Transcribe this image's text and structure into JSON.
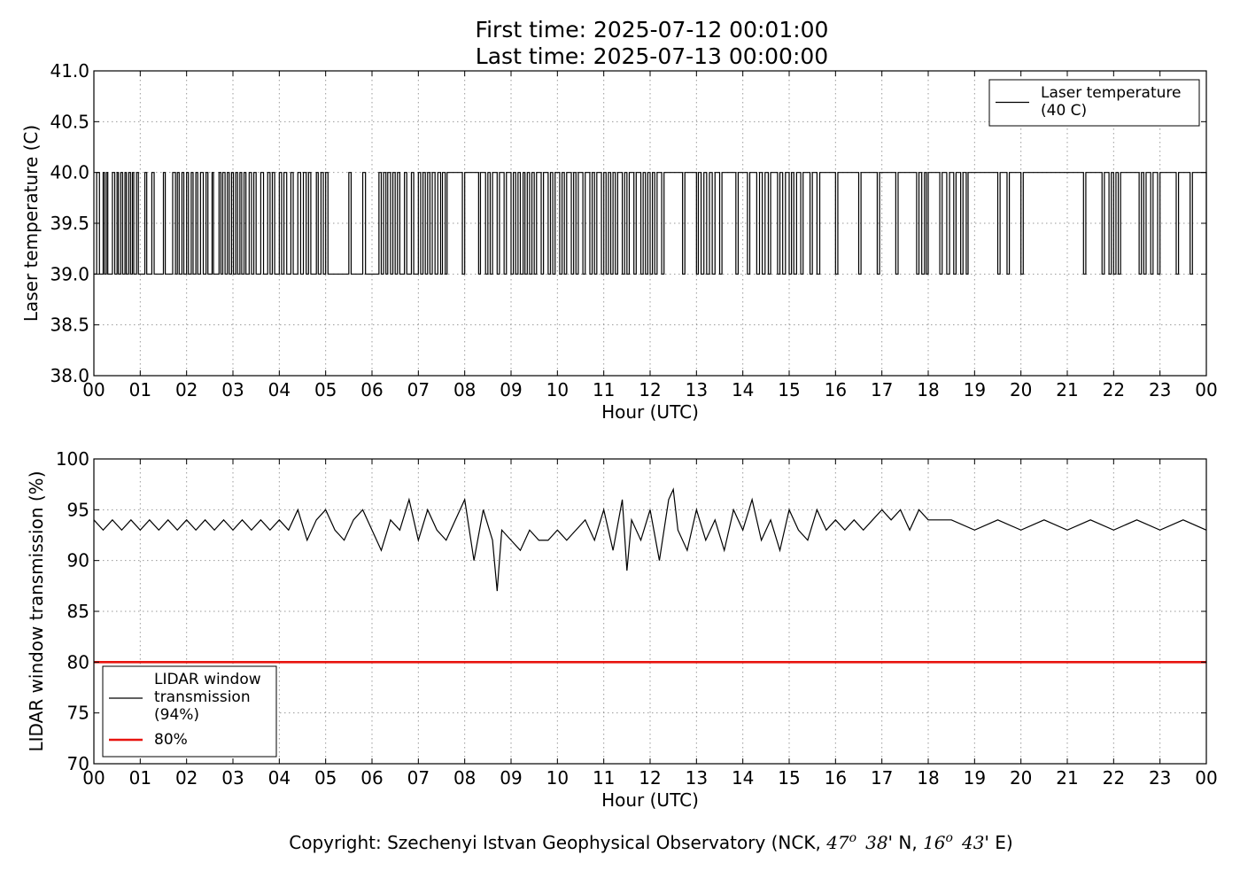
{
  "title": {
    "line1": "First time: 2025-07-12 00:01:00",
    "line2": "Last time: 2025-07-13 00:00:00"
  },
  "copyright": {
    "prefix": "Copyright: Szechenyi Istvan Geophysical Observatory (NCK, ",
    "lat_deg": "47",
    "lat_deg_sup": "o",
    "lat_min": "38",
    "lat_suffix": "' N, ",
    "lon_deg": "16",
    "lon_deg_sup": "o",
    "lon_min": "43",
    "lon_suffix": "' E)"
  },
  "chart_data": [
    {
      "type": "line",
      "xlabel": "Hour (UTC)",
      "ylabel": "Laser temperature (C)",
      "xlim": [
        0,
        24
      ],
      "ylim": [
        38.0,
        41.0
      ],
      "x_tick_labels": [
        "00",
        "01",
        "02",
        "03",
        "04",
        "05",
        "06",
        "07",
        "08",
        "09",
        "10",
        "11",
        "12",
        "13",
        "14",
        "15",
        "16",
        "17",
        "18",
        "19",
        "20",
        "21",
        "22",
        "23",
        "00"
      ],
      "y_ticks": [
        38.0,
        38.5,
        39.0,
        39.5,
        40.0,
        40.5,
        41.0
      ],
      "y_tick_labels": [
        "38.0",
        "38.5",
        "39.0",
        "39.5",
        "40.0",
        "40.5",
        "41.0"
      ],
      "grid": true,
      "legend_position": "top-right",
      "series": [
        {
          "name": "Laser temperature\n(40 C)",
          "color": "#000000",
          "step": true,
          "x": [
            0.0,
            0.06,
            0.12,
            0.2,
            0.23,
            0.27,
            0.3,
            0.4,
            0.45,
            0.5,
            0.53,
            0.58,
            0.62,
            0.67,
            0.7,
            0.75,
            0.79,
            0.83,
            0.86,
            0.92,
            0.96,
            1.1,
            1.14,
            1.25,
            1.3,
            1.5,
            1.54,
            1.7,
            1.76,
            1.8,
            1.84,
            1.9,
            1.94,
            2.0,
            2.04,
            2.1,
            2.14,
            2.2,
            2.24,
            2.3,
            2.36,
            2.42,
            2.46,
            2.55,
            2.58,
            2.7,
            2.74,
            2.78,
            2.83,
            2.88,
            2.92,
            2.97,
            3.01,
            3.06,
            3.1,
            3.15,
            3.19,
            3.24,
            3.28,
            3.35,
            3.4,
            3.45,
            3.5,
            3.6,
            3.66,
            3.75,
            3.8,
            3.85,
            3.9,
            4.0,
            4.05,
            4.1,
            4.16,
            4.25,
            4.3,
            4.4,
            4.46,
            4.52,
            4.58,
            4.63,
            4.68,
            4.8,
            4.84,
            4.9,
            4.95,
            5.0,
            5.05,
            5.5,
            5.55,
            5.8,
            5.86,
            6.15,
            6.2,
            6.25,
            6.3,
            6.34,
            6.4,
            6.45,
            6.5,
            6.55,
            6.6,
            6.7,
            6.75,
            6.85,
            6.9,
            7.0,
            7.05,
            7.1,
            7.15,
            7.2,
            7.25,
            7.3,
            7.36,
            7.42,
            7.48,
            7.52,
            7.58,
            7.62,
            7.95,
            8.0,
            8.3,
            8.34,
            8.45,
            8.5,
            8.55,
            8.6,
            8.7,
            8.75,
            8.85,
            8.9,
            9.0,
            9.05,
            9.1,
            9.15,
            9.2,
            9.26,
            9.3,
            9.35,
            9.4,
            9.45,
            9.5,
            9.55,
            9.65,
            9.7,
            9.8,
            9.85,
            9.9,
            9.95,
            10.05,
            10.1,
            10.15,
            10.2,
            10.3,
            10.35,
            10.4,
            10.45,
            10.55,
            10.6,
            10.7,
            10.75,
            10.8,
            10.85,
            10.95,
            11.0,
            11.05,
            11.1,
            11.15,
            11.2,
            11.25,
            11.3,
            11.4,
            11.45,
            11.5,
            11.55,
            11.65,
            11.7,
            11.8,
            11.85,
            11.9,
            11.95,
            12.0,
            12.05,
            12.1,
            12.15,
            12.25,
            12.3,
            12.7,
            12.75,
            13.0,
            13.04,
            13.1,
            13.16,
            13.22,
            13.28,
            13.34,
            13.4,
            13.5,
            13.55,
            13.85,
            13.9,
            14.1,
            14.15,
            14.3,
            14.36,
            14.42,
            14.48,
            14.55,
            14.6,
            14.75,
            14.8,
            14.86,
            14.92,
            15.0,
            15.05,
            15.1,
            15.16,
            15.25,
            15.3,
            15.45,
            15.5,
            15.6,
            15.66,
            16.0,
            16.05,
            16.5,
            16.55,
            16.9,
            16.95,
            17.3,
            17.35,
            17.75,
            17.8,
            17.86,
            17.92,
            17.96,
            18.0,
            18.25,
            18.3,
            18.4,
            18.46,
            18.55,
            18.6,
            18.7,
            18.75,
            18.82,
            18.86,
            19.5,
            19.55,
            19.7,
            19.75,
            20.0,
            20.05,
            21.35,
            21.4,
            21.75,
            21.8,
            21.9,
            21.95,
            22.0,
            22.05,
            22.1,
            22.15,
            22.55,
            22.6,
            22.65,
            22.7,
            22.8,
            22.85,
            22.95,
            23.0,
            23.35,
            23.4,
            23.65,
            23.7,
            24.0
          ],
          "y": [
            39,
            40,
            39,
            40,
            39,
            40,
            39,
            40,
            39,
            40,
            39,
            40,
            39,
            40,
            39,
            40,
            39,
            40,
            39,
            40,
            39,
            40,
            39,
            40,
            39,
            40,
            39,
            40,
            39,
            40,
            39,
            40,
            39,
            40,
            39,
            40,
            39,
            40,
            39,
            40,
            39,
            40,
            39,
            40,
            39,
            40,
            39,
            40,
            39,
            40,
            39,
            40,
            39,
            40,
            39,
            40,
            39,
            40,
            39,
            40,
            39,
            40,
            39,
            40,
            39,
            40,
            39,
            40,
            39,
            40,
            39,
            40,
            39,
            40,
            39,
            40,
            39,
            40,
            39,
            40,
            39,
            40,
            39,
            40,
            39,
            40,
            39,
            40,
            39,
            40,
            39,
            40,
            39,
            40,
            39,
            40,
            39,
            40,
            39,
            40,
            39,
            40,
            39,
            40,
            39,
            40,
            39,
            40,
            39,
            40,
            39,
            40,
            39,
            40,
            39,
            40,
            39,
            40,
            39,
            40,
            39,
            40,
            39,
            40,
            39,
            40,
            39,
            40,
            39,
            40,
            39,
            40,
            39,
            40,
            39,
            40,
            39,
            40,
            39,
            40,
            39,
            40,
            39,
            40,
            39,
            40,
            39,
            40,
            39,
            40,
            39,
            40,
            39,
            40,
            39,
            40,
            39,
            40,
            39,
            40,
            39,
            40,
            39,
            40,
            39,
            40,
            39,
            40,
            39,
            40,
            39,
            40,
            39,
            40,
            39,
            40,
            39,
            40,
            39,
            40,
            39,
            40,
            39,
            40,
            39,
            40,
            39,
            40,
            39,
            40,
            39,
            40,
            39,
            40,
            39,
            40,
            39,
            40,
            39,
            40,
            39,
            40,
            39,
            40,
            39,
            40,
            39,
            40,
            39,
            40,
            39,
            40,
            39,
            40,
            39,
            40,
            39,
            40,
            39,
            40,
            39,
            40,
            39,
            40,
            39,
            40,
            39,
            40,
            39,
            40,
            39,
            40,
            39,
            40,
            39,
            40,
            39,
            40,
            39,
            40,
            39,
            40,
            39,
            40,
            39,
            40,
            39,
            40,
            39,
            40,
            39,
            40,
            39,
            40,
            39,
            40,
            39,
            40,
            39,
            40,
            39,
            40,
            39,
            40,
            39,
            40,
            39,
            40,
            39,
            40,
            39,
            40,
            39,
            40,
            39
          ]
        }
      ]
    },
    {
      "type": "line",
      "xlabel": "Hour (UTC)",
      "ylabel": "LIDAR window transmission (%)",
      "xlim": [
        0,
        24
      ],
      "ylim": [
        70,
        100
      ],
      "x_tick_labels": [
        "00",
        "01",
        "02",
        "03",
        "04",
        "05",
        "06",
        "07",
        "08",
        "09",
        "10",
        "11",
        "12",
        "13",
        "14",
        "15",
        "16",
        "17",
        "18",
        "19",
        "20",
        "21",
        "22",
        "23",
        "00"
      ],
      "y_ticks": [
        70,
        75,
        80,
        85,
        90,
        95,
        100
      ],
      "y_tick_labels": [
        "70",
        "75",
        "80",
        "85",
        "90",
        "95",
        "100"
      ],
      "grid": true,
      "legend_position": "bottom-left",
      "series": [
        {
          "name": "LIDAR window\ntransmission\n(94%)",
          "color": "#000000",
          "x": [
            0.0,
            0.2,
            0.4,
            0.6,
            0.8,
            1.0,
            1.2,
            1.4,
            1.6,
            1.8,
            2.0,
            2.2,
            2.4,
            2.6,
            2.8,
            3.0,
            3.2,
            3.4,
            3.6,
            3.8,
            4.0,
            4.2,
            4.4,
            4.6,
            4.8,
            5.0,
            5.2,
            5.4,
            5.6,
            5.8,
            6.0,
            6.2,
            6.4,
            6.6,
            6.8,
            7.0,
            7.2,
            7.4,
            7.6,
            7.8,
            8.0,
            8.2,
            8.4,
            8.6,
            8.7,
            8.8,
            9.0,
            9.2,
            9.4,
            9.6,
            9.8,
            10.0,
            10.2,
            10.4,
            10.6,
            10.8,
            11.0,
            11.2,
            11.4,
            11.5,
            11.6,
            11.8,
            12.0,
            12.2,
            12.4,
            12.5,
            12.6,
            12.8,
            13.0,
            13.2,
            13.4,
            13.6,
            13.8,
            14.0,
            14.2,
            14.4,
            14.6,
            14.8,
            15.0,
            15.2,
            15.4,
            15.6,
            15.8,
            16.0,
            16.2,
            16.4,
            16.6,
            16.8,
            17.0,
            17.2,
            17.4,
            17.6,
            17.8,
            18.0,
            18.5,
            19.0,
            19.5,
            20.0,
            20.5,
            21.0,
            21.5,
            22.0,
            22.5,
            23.0,
            23.5,
            24.0
          ],
          "y": [
            94,
            93,
            94,
            93,
            94,
            93,
            94,
            93,
            94,
            93,
            94,
            93,
            94,
            93,
            94,
            93,
            94,
            93,
            94,
            93,
            94,
            93,
            95,
            92,
            94,
            95,
            93,
            92,
            94,
            95,
            93,
            91,
            94,
            93,
            96,
            92,
            95,
            93,
            92,
            94,
            96,
            90,
            95,
            92,
            87,
            93,
            92,
            91,
            93,
            92,
            92,
            93,
            92,
            93,
            94,
            92,
            95,
            91,
            96,
            89,
            94,
            92,
            95,
            90,
            96,
            97,
            93,
            91,
            95,
            92,
            94,
            91,
            95,
            93,
            96,
            92,
            94,
            91,
            95,
            93,
            92,
            95,
            93,
            94,
            93,
            94,
            93,
            94,
            95,
            94,
            95,
            93,
            95,
            94,
            94,
            93,
            94,
            93,
            94,
            93,
            94,
            93,
            94,
            93,
            94,
            93
          ]
        },
        {
          "name": "80%",
          "color": "#e8140f",
          "x": [
            0,
            24
          ],
          "y": [
            80,
            80
          ]
        }
      ]
    }
  ]
}
